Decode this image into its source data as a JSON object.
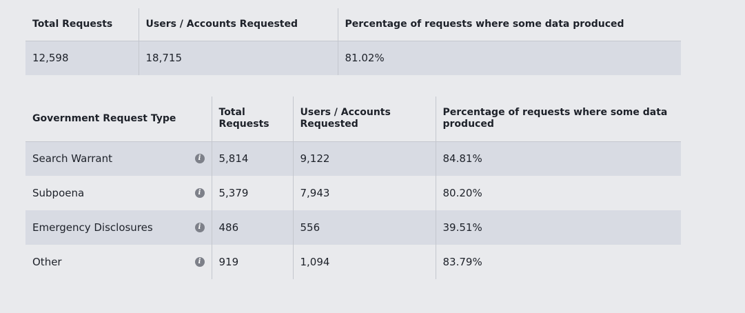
{
  "summary": {
    "headers": [
      "Total Requests",
      "Users / Accounts Requested",
      "Percentage of requests where some data produced"
    ],
    "values": [
      "12,598",
      "18,715",
      "81.02%"
    ]
  },
  "breakdown": {
    "headers": [
      "Government Request Type",
      "Total Requests",
      "Users / Accounts Requested",
      "Percentage of requests where some data produced"
    ],
    "rows": [
      {
        "type": "Search Warrant",
        "total": "5,814",
        "users": "9,122",
        "pct": "84.81%"
      },
      {
        "type": "Subpoena",
        "total": "5,379",
        "users": "7,943",
        "pct": "80.20%"
      },
      {
        "type": "Emergency Disclosures",
        "total": "486",
        "users": "556",
        "pct": "39.51%"
      },
      {
        "type": "Other",
        "total": "919",
        "users": "1,094",
        "pct": "83.79%"
      }
    ]
  },
  "icons": {
    "info_glyph": "i",
    "info_color": "#7d8089"
  },
  "colors": {
    "page_background": "#e9eaed",
    "row_shade": "#d8dbe3",
    "divider": "#c4c7ce"
  }
}
